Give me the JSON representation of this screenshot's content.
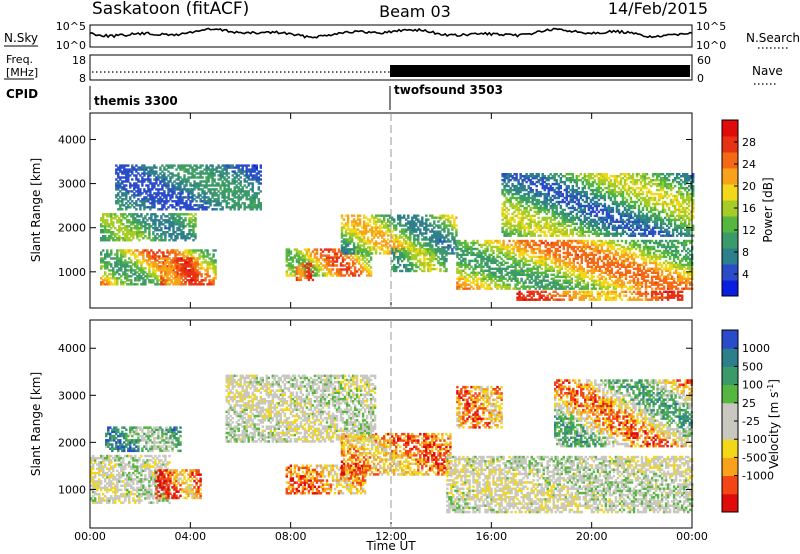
{
  "header": {
    "title": "Saskatoon (fitACF)",
    "beam": "Beam 03",
    "date": "14/Feb/2015"
  },
  "panels": {
    "nsky": {
      "left_label": "N.Sky",
      "right_label": "N.Search",
      "tick_top": "10^5",
      "tick_bottom": "10^0"
    },
    "freq": {
      "left_label_1": "Freq.",
      "left_label_2": "[MHz]",
      "right_label": "Nave",
      "left_ticks": [
        "18",
        "8"
      ],
      "right_ticks": [
        "60",
        "0"
      ]
    },
    "cpid": {
      "label": "CPID",
      "segments": [
        {
          "name": "themis 3300",
          "start_hour": 0
        },
        {
          "name": "twofsound 3503",
          "start_hour": 12
        }
      ]
    }
  },
  "x_axis": {
    "label": "Time UT",
    "ticks": [
      {
        "hour": 0,
        "label": "00:00"
      },
      {
        "hour": 4,
        "label": "04:00"
      },
      {
        "hour": 8,
        "label": "08:00"
      },
      {
        "hour": 12,
        "label": "12:00"
      },
      {
        "hour": 16,
        "label": "16:00"
      },
      {
        "hour": 20,
        "label": "20:00"
      },
      {
        "hour": 24,
        "label": "00:00"
      }
    ]
  },
  "chart_data": [
    {
      "type": "heatmap",
      "id": "power",
      "ylabel": "Slant Range [km]",
      "yticks": [
        1000,
        2000,
        3000,
        4000
      ],
      "ylim": [
        180,
        4600
      ],
      "xlim": [
        0,
        24
      ],
      "colorbar": {
        "label": "Power [dB]",
        "ticks": [
          4,
          8,
          12,
          16,
          20,
          24,
          28
        ],
        "range": [
          0,
          32
        ],
        "colors": [
          "#0a1ee0",
          "#2a4cc8",
          "#2e7f8c",
          "#3a9a6a",
          "#57b640",
          "#a6cc28",
          "#f3d81a",
          "#f7a21a",
          "#f46a14",
          "#e83214",
          "#e00b0b"
        ]
      },
      "bands": [
        {
          "t0": 0.4,
          "t1": 5.0,
          "r0": 700,
          "r1": 1500,
          "v0": 10,
          "v1": 28
        },
        {
          "t0": 0.4,
          "t1": 4.2,
          "r0": 1700,
          "r1": 2300,
          "v0": 6,
          "v1": 16
        },
        {
          "t0": 2.8,
          "t1": 4.3,
          "r0": 700,
          "r1": 1300,
          "v0": 22,
          "v1": 30
        },
        {
          "t0": 7.8,
          "t1": 11.2,
          "r0": 900,
          "r1": 1500,
          "v0": 12,
          "v1": 28
        },
        {
          "t0": 8.2,
          "t1": 8.9,
          "r0": 800,
          "r1": 1200,
          "v0": 22,
          "v1": 30
        },
        {
          "t0": 10.0,
          "t1": 14.6,
          "r0": 1400,
          "r1": 2300,
          "v0": 6,
          "v1": 22
        },
        {
          "t0": 12.0,
          "t1": 14.2,
          "r0": 1000,
          "r1": 1500,
          "v0": 8,
          "v1": 18
        },
        {
          "t0": 14.6,
          "t1": 24.0,
          "r0": 600,
          "r1": 1700,
          "v0": 10,
          "v1": 26
        },
        {
          "t0": 17.0,
          "t1": 23.6,
          "r0": 350,
          "r1": 550,
          "v0": 20,
          "v1": 30
        },
        {
          "t0": 16.4,
          "t1": 24.0,
          "r0": 1800,
          "r1": 3200,
          "v0": 4,
          "v1": 18
        },
        {
          "t0": 1.0,
          "t1": 6.8,
          "r0": 2400,
          "r1": 3400,
          "v0": 3,
          "v1": 10
        }
      ]
    },
    {
      "type": "heatmap",
      "id": "velocity",
      "ylabel": "Slant Range [km]",
      "yticks": [
        1000,
        2000,
        3000,
        4000
      ],
      "ylim": [
        180,
        4600
      ],
      "xlim": [
        0,
        24
      ],
      "colorbar": {
        "label": "Velocity [m s^-1]",
        "tick_labels": [
          "1000",
          "500",
          "100",
          "25",
          "-25",
          "-100",
          "-500",
          "-1000"
        ],
        "levels": [
          "-1000",
          "-500",
          "-100",
          "-25",
          "25",
          "100",
          "500",
          "1000"
        ],
        "colors": [
          "#e00b0b",
          "#f24614",
          "#f7a21a",
          "#f3d81a",
          "#c8c8c0",
          "#c8c8c0",
          "#57b640",
          "#3a9a6a",
          "#2e7f8c",
          "#2a4cc8"
        ]
      },
      "bands": [
        {
          "t0": 0.0,
          "t1": 3.2,
          "r0": 700,
          "r1": 1700,
          "v0": 4,
          "v1": 5
        },
        {
          "t0": 0.6,
          "t1": 3.6,
          "r0": 1800,
          "r1": 2300,
          "v0": 5,
          "v1": 8
        },
        {
          "t0": 2.6,
          "t1": 4.4,
          "r0": 800,
          "r1": 1400,
          "v0": 0,
          "v1": 3
        },
        {
          "t0": 5.4,
          "t1": 11.4,
          "r0": 2000,
          "r1": 3400,
          "v0": 4,
          "v1": 5
        },
        {
          "t0": 7.8,
          "t1": 11.0,
          "r0": 900,
          "r1": 1500,
          "v0": 1,
          "v1": 3
        },
        {
          "t0": 10.0,
          "t1": 14.4,
          "r0": 1300,
          "r1": 2200,
          "v0": 1,
          "v1": 3
        },
        {
          "t0": 14.2,
          "t1": 24.0,
          "r0": 500,
          "r1": 1700,
          "v0": 4,
          "v1": 5
        },
        {
          "t0": 14.6,
          "t1": 16.4,
          "r0": 2300,
          "r1": 3200,
          "v0": 1,
          "v1": 3
        },
        {
          "t0": 18.5,
          "t1": 24.0,
          "r0": 1900,
          "r1": 3300,
          "v0": 1,
          "v1": 7
        }
      ]
    }
  ]
}
